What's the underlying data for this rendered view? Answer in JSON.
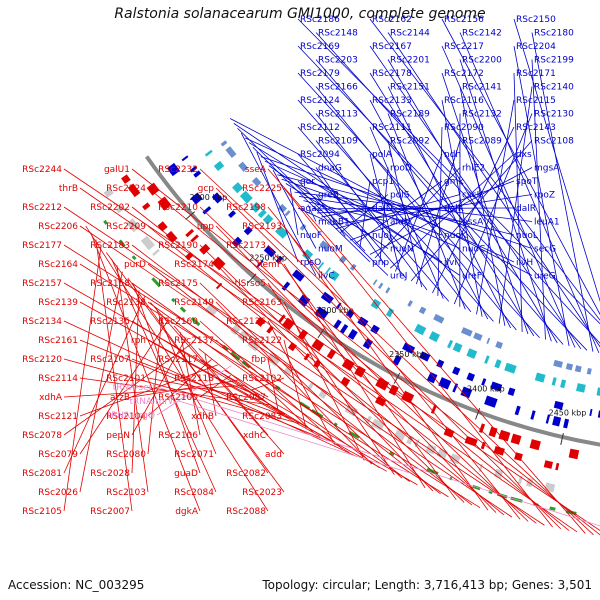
{
  "title": "Ralstonia solanacearum GMI1000, complete genome",
  "footer": {
    "accession": "Accession: NC_003295",
    "topology": "Topology: circular; Length: 3,716,413 bp; Genes: 3,501"
  },
  "colors": {
    "forward_strand": "#0000cc",
    "reverse_strand": "#e00000",
    "rna": "#ee88cc",
    "backbone": "#888888"
  },
  "ticks": [
    "2450 kbp",
    "2400 kbp",
    "2350 kbp",
    "2300 kbp",
    "2250 kbp",
    "2200 kbp"
  ],
  "blue_labels": [
    "RSc2186",
    "RSc2162",
    "RSc2156",
    "RSc2150",
    "RSc2148",
    "RSc2144",
    "RSc2142",
    "RSc2180",
    "RSc2169",
    "RSc2167",
    "RSc2217",
    "RSc2204",
    "RSc2203",
    "RSc2201",
    "RSc2200",
    "RSc2199",
    "RSc2179",
    "RSc2178",
    "RSc2172",
    "RSc2171",
    "RSc2166",
    "RSc2151",
    "RSc2141",
    "RSc2140",
    "RSc2124",
    "RSc2133",
    "RSc2116",
    "RSc2115",
    "RSc2113",
    "RSc2189",
    "RSc2132",
    "RSc2130",
    "RSc2112",
    "RSc2111",
    "RSc2090",
    "RSc2143",
    "RSc2109",
    "RSc2092",
    "RSc2089",
    "RSc2108",
    "RSc2094",
    "polA",
    "ndh",
    "dxs",
    "dnaG",
    "rpoD",
    "rhlE2",
    "mgsA",
    "qor",
    "pcp1",
    "gmk",
    "spoT",
    "greB",
    "polS",
    "cscK",
    "rpoZ",
    "agaZ",
    "dalD",
    "dalK",
    "dalR",
    "maeB1",
    "aldH",
    "pssA",
    "leuA1",
    "nuoF",
    "nuoJ",
    "nuoK",
    "nuoL",
    "nuoM",
    "nuoN",
    "nuoC",
    "secG",
    "rpsO",
    "pnp",
    "ilvI",
    "ilvH",
    "ilvC",
    "ureJ",
    "ureF",
    "ureG"
  ],
  "red_labels": [
    "RSc2244",
    "galU1",
    "RSc2232",
    "sseA",
    "thrB",
    "RSc2224",
    "gcp",
    "RSc2225",
    "RSc2212",
    "RSc2202",
    "RSc2210",
    "RSc2198",
    "RSc2206",
    "RSc2209",
    "upp",
    "RSc2193",
    "RSc2177",
    "RSc2183",
    "RSc2190",
    "RSc2173",
    "RSc2164",
    "purD",
    "RSc2174",
    "hemF",
    "RSc2157",
    "RSc2158",
    "RSc2175",
    "tlSrso5",
    "RSc2139",
    "RSc2138",
    "RSc2149",
    "RSc2163",
    "RSc2134",
    "RSc2135",
    "RSc2160",
    "RSc2136",
    "RSc2161",
    "rph",
    "RSc2137",
    "RSc2122",
    "RSc2120",
    "RSc2107",
    "RSc2117",
    "fbp",
    "RSc2114",
    "RSc2101",
    "RSc2118",
    "RSc2102",
    "xdhA",
    "atzB",
    "RSc2100",
    "RSc2087",
    "RSc2121",
    "RSc2104",
    "xdhB",
    "RSc2083",
    "RSc2078",
    "pepN",
    "RSc2106",
    "xdhC",
    "RSc2079",
    "RSc2080",
    "RSc2071",
    "add",
    "RSc2081",
    "RSc2028",
    "guaD",
    "RSc2082",
    "RSc2026",
    "RSc2103",
    "RSc2084",
    "RSc2023",
    "RSc2105",
    "RSc2007",
    "dgkA",
    "RSc2088"
  ],
  "rna_labels": [
    "tRNA-serI",
    "tRNA-thrW",
    "tRNA-argQ"
  ]
}
